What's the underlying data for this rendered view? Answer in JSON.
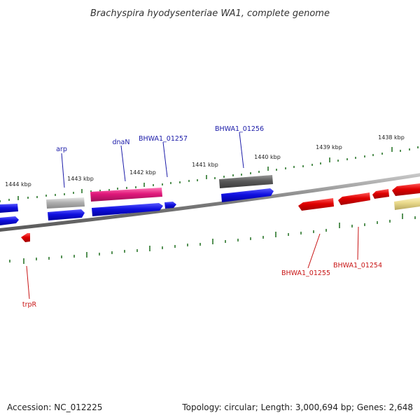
{
  "title": "Brachyspira hyodysenteriae WA1, complete genome",
  "footer": {
    "accession": "Accession: NC_012225",
    "stats": "Topology: circular; Length: 3,000,694 bp; Genes: 2,648"
  },
  "ticks": [
    "1444 kbp",
    "1443 kbp",
    "1442 kbp",
    "1441 kbp",
    "1440 kbp",
    "1439 kbp",
    "1438 kbp"
  ],
  "gene_labels": {
    "arp": "arp",
    "dnaN": "dnaN",
    "bhwa1_01257": "BHWA1_01257",
    "bhwa1_01256": "BHWA1_01256",
    "bhwa1_01255": "BHWA1_01255",
    "bhwa1_01254": "BHWA1_01254",
    "trpR": "trpR"
  },
  "colors": {
    "forward_cds": "#1414d2",
    "reverse_cds": "#e00000",
    "pink": "#e0187a",
    "gray": "#9a9a9a",
    "dark_gray": "#505050",
    "yellow": "#e8d88a",
    "label_blue": "#1a1aa8",
    "label_red": "#c81414",
    "tick_green": "#1e6e1e",
    "backbone": "#7a7a7a"
  }
}
